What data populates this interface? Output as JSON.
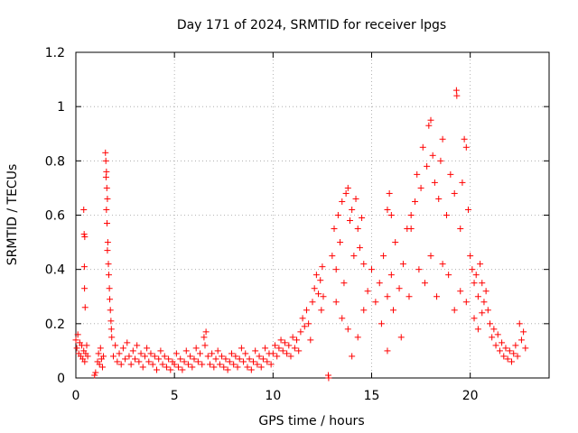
{
  "chart_data": {
    "type": "scatter",
    "title": "Day 171 of 2024, SRMTID for receiver lpgs",
    "xlabel": "GPS time / hours",
    "ylabel": "SRMTID / TECUs",
    "xlim": [
      0,
      24
    ],
    "ylim": [
      0,
      1.2
    ],
    "xticks": [
      0,
      5,
      10,
      15,
      20
    ],
    "xtick_labels": [
      "0",
      "5",
      "10",
      "15",
      "20"
    ],
    "yticks": [
      0,
      0.2,
      0.4,
      0.6,
      0.8,
      1.0,
      1.2
    ],
    "ytick_labels": [
      "0",
      "0.2",
      "0.4",
      "0.6",
      "0.8",
      "1",
      "1.2"
    ],
    "grid": true,
    "marker": "+",
    "marker_color": "#ff0000",
    "series": [
      {
        "name": "SRMTID",
        "points": [
          [
            0.0,
            0.14
          ],
          [
            0.05,
            0.11
          ],
          [
            0.1,
            0.16
          ],
          [
            0.15,
            0.09
          ],
          [
            0.2,
            0.13
          ],
          [
            0.25,
            0.08
          ],
          [
            0.3,
            0.12
          ],
          [
            0.35,
            0.07
          ],
          [
            0.4,
            0.1
          ],
          [
            0.45,
            0.06
          ],
          [
            0.5,
            0.09
          ],
          [
            0.55,
            0.12
          ],
          [
            0.6,
            0.08
          ],
          [
            0.4,
            0.62
          ],
          [
            0.42,
            0.53
          ],
          [
            0.45,
            0.52
          ],
          [
            0.43,
            0.41
          ],
          [
            0.44,
            0.33
          ],
          [
            0.47,
            0.26
          ],
          [
            0.95,
            0.01
          ],
          [
            1.0,
            0.02
          ],
          [
            1.1,
            0.06
          ],
          [
            1.15,
            0.09
          ],
          [
            1.2,
            0.05
          ],
          [
            1.25,
            0.11
          ],
          [
            1.3,
            0.07
          ],
          [
            1.35,
            0.04
          ],
          [
            1.4,
            0.08
          ],
          [
            1.5,
            0.83
          ],
          [
            1.52,
            0.8
          ],
          [
            1.55,
            0.76
          ],
          [
            1.53,
            0.74
          ],
          [
            1.57,
            0.7
          ],
          [
            1.6,
            0.66
          ],
          [
            1.55,
            0.62
          ],
          [
            1.58,
            0.57
          ],
          [
            1.62,
            0.5
          ],
          [
            1.6,
            0.47
          ],
          [
            1.65,
            0.42
          ],
          [
            1.67,
            0.38
          ],
          [
            1.7,
            0.33
          ],
          [
            1.72,
            0.29
          ],
          [
            1.75,
            0.25
          ],
          [
            1.78,
            0.21
          ],
          [
            1.8,
            0.18
          ],
          [
            1.82,
            0.15
          ],
          [
            1.9,
            0.08
          ],
          [
            2.0,
            0.12
          ],
          [
            2.1,
            0.06
          ],
          [
            2.2,
            0.09
          ],
          [
            2.3,
            0.05
          ],
          [
            2.4,
            0.11
          ],
          [
            2.5,
            0.07
          ],
          [
            2.6,
            0.13
          ],
          [
            2.7,
            0.08
          ],
          [
            2.8,
            0.05
          ],
          [
            2.9,
            0.1
          ],
          [
            3.0,
            0.07
          ],
          [
            3.1,
            0.12
          ],
          [
            3.2,
            0.06
          ],
          [
            3.3,
            0.09
          ],
          [
            3.4,
            0.04
          ],
          [
            3.5,
            0.08
          ],
          [
            3.6,
            0.11
          ],
          [
            3.7,
            0.06
          ],
          [
            3.8,
            0.09
          ],
          [
            3.9,
            0.05
          ],
          [
            4.0,
            0.08
          ],
          [
            4.1,
            0.03
          ],
          [
            4.2,
            0.07
          ],
          [
            4.3,
            0.1
          ],
          [
            4.4,
            0.05
          ],
          [
            4.5,
            0.08
          ],
          [
            4.6,
            0.04
          ],
          [
            4.7,
            0.07
          ],
          [
            4.8,
            0.03
          ],
          [
            4.9,
            0.06
          ],
          [
            5.0,
            0.05
          ],
          [
            5.1,
            0.09
          ],
          [
            5.2,
            0.04
          ],
          [
            5.3,
            0.07
          ],
          [
            5.4,
            0.03
          ],
          [
            5.5,
            0.06
          ],
          [
            5.6,
            0.1
          ],
          [
            5.7,
            0.05
          ],
          [
            5.8,
            0.08
          ],
          [
            5.9,
            0.04
          ],
          [
            6.0,
            0.07
          ],
          [
            6.1,
            0.11
          ],
          [
            6.2,
            0.06
          ],
          [
            6.3,
            0.09
          ],
          [
            6.4,
            0.05
          ],
          [
            6.5,
            0.15
          ],
          [
            6.55,
            0.12
          ],
          [
            6.6,
            0.17
          ],
          [
            6.7,
            0.08
          ],
          [
            6.8,
            0.05
          ],
          [
            6.9,
            0.09
          ],
          [
            7.0,
            0.04
          ],
          [
            7.1,
            0.07
          ],
          [
            7.2,
            0.1
          ],
          [
            7.3,
            0.05
          ],
          [
            7.4,
            0.08
          ],
          [
            7.5,
            0.04
          ],
          [
            7.6,
            0.07
          ],
          [
            7.7,
            0.03
          ],
          [
            7.8,
            0.06
          ],
          [
            7.9,
            0.09
          ],
          [
            8.0,
            0.05
          ],
          [
            8.1,
            0.08
          ],
          [
            8.2,
            0.04
          ],
          [
            8.3,
            0.07
          ],
          [
            8.4,
            0.11
          ],
          [
            8.5,
            0.06
          ],
          [
            8.6,
            0.09
          ],
          [
            8.7,
            0.04
          ],
          [
            8.8,
            0.07
          ],
          [
            8.9,
            0.03
          ],
          [
            9.0,
            0.06
          ],
          [
            9.1,
            0.1
          ],
          [
            9.2,
            0.05
          ],
          [
            9.3,
            0.08
          ],
          [
            9.4,
            0.04
          ],
          [
            9.5,
            0.07
          ],
          [
            9.6,
            0.11
          ],
          [
            9.7,
            0.06
          ],
          [
            9.8,
            0.09
          ],
          [
            9.9,
            0.05
          ],
          [
            10.0,
            0.09
          ],
          [
            10.1,
            0.12
          ],
          [
            10.2,
            0.08
          ],
          [
            10.3,
            0.11
          ],
          [
            10.4,
            0.14
          ],
          [
            10.5,
            0.1
          ],
          [
            10.6,
            0.13
          ],
          [
            10.7,
            0.09
          ],
          [
            10.8,
            0.12
          ],
          [
            10.9,
            0.08
          ],
          [
            11.0,
            0.15
          ],
          [
            11.1,
            0.11
          ],
          [
            11.2,
            0.14
          ],
          [
            11.3,
            0.1
          ],
          [
            11.4,
            0.17
          ],
          [
            11.5,
            0.22
          ],
          [
            11.6,
            0.19
          ],
          [
            11.7,
            0.25
          ],
          [
            11.8,
            0.2
          ],
          [
            11.9,
            0.14
          ],
          [
            12.0,
            0.28
          ],
          [
            12.1,
            0.33
          ],
          [
            12.2,
            0.38
          ],
          [
            12.3,
            0.31
          ],
          [
            12.4,
            0.36
          ],
          [
            12.5,
            0.41
          ],
          [
            12.55,
            0.3
          ],
          [
            12.45,
            0.25
          ],
          [
            12.8,
            0.01
          ],
          [
            12.82,
            0.0
          ],
          [
            13.0,
            0.45
          ],
          [
            13.1,
            0.55
          ],
          [
            13.2,
            0.4
          ],
          [
            13.3,
            0.6
          ],
          [
            13.4,
            0.5
          ],
          [
            13.5,
            0.65
          ],
          [
            13.6,
            0.35
          ],
          [
            13.7,
            0.68
          ],
          [
            13.8,
            0.7
          ],
          [
            13.9,
            0.58
          ],
          [
            14.0,
            0.62
          ],
          [
            14.1,
            0.45
          ],
          [
            14.2,
            0.66
          ],
          [
            14.3,
            0.55
          ],
          [
            14.4,
            0.48
          ],
          [
            14.5,
            0.59
          ],
          [
            14.6,
            0.42
          ],
          [
            13.2,
            0.28
          ],
          [
            13.5,
            0.22
          ],
          [
            13.8,
            0.18
          ],
          [
            14.0,
            0.08
          ],
          [
            14.3,
            0.15
          ],
          [
            14.6,
            0.25
          ],
          [
            14.8,
            0.32
          ],
          [
            15.0,
            0.4
          ],
          [
            15.2,
            0.28
          ],
          [
            15.4,
            0.35
          ],
          [
            15.6,
            0.45
          ],
          [
            15.8,
            0.3
          ],
          [
            16.0,
            0.38
          ],
          [
            16.2,
            0.5
          ],
          [
            16.4,
            0.33
          ],
          [
            16.6,
            0.42
          ],
          [
            16.8,
            0.55
          ],
          [
            17.0,
            0.6
          ],
          [
            15.5,
            0.2
          ],
          [
            15.8,
            0.1
          ],
          [
            16.1,
            0.25
          ],
          [
            16.5,
            0.15
          ],
          [
            16.9,
            0.3
          ],
          [
            15.8,
            0.62
          ],
          [
            15.9,
            0.68
          ],
          [
            16.0,
            0.6
          ],
          [
            17.0,
            0.55
          ],
          [
            17.2,
            0.65
          ],
          [
            17.3,
            0.75
          ],
          [
            17.5,
            0.7
          ],
          [
            17.6,
            0.85
          ],
          [
            17.8,
            0.78
          ],
          [
            17.9,
            0.93
          ],
          [
            18.0,
            0.95
          ],
          [
            18.1,
            0.82
          ],
          [
            18.2,
            0.72
          ],
          [
            18.4,
            0.66
          ],
          [
            18.5,
            0.8
          ],
          [
            18.6,
            0.88
          ],
          [
            18.8,
            0.6
          ],
          [
            19.0,
            0.75
          ],
          [
            19.2,
            0.68
          ],
          [
            19.3,
            1.06
          ],
          [
            19.32,
            1.04
          ],
          [
            19.5,
            0.55
          ],
          [
            19.6,
            0.72
          ],
          [
            19.7,
            0.88
          ],
          [
            19.8,
            0.85
          ],
          [
            19.9,
            0.62
          ],
          [
            17.4,
            0.4
          ],
          [
            17.7,
            0.35
          ],
          [
            18.0,
            0.45
          ],
          [
            18.3,
            0.3
          ],
          [
            18.6,
            0.42
          ],
          [
            18.9,
            0.38
          ],
          [
            19.2,
            0.25
          ],
          [
            19.5,
            0.32
          ],
          [
            19.8,
            0.28
          ],
          [
            20.0,
            0.45
          ],
          [
            20.1,
            0.4
          ],
          [
            20.2,
            0.35
          ],
          [
            20.3,
            0.38
          ],
          [
            20.4,
            0.3
          ],
          [
            20.5,
            0.42
          ],
          [
            20.6,
            0.35
          ],
          [
            20.7,
            0.28
          ],
          [
            20.8,
            0.32
          ],
          [
            20.9,
            0.25
          ],
          [
            20.2,
            0.22
          ],
          [
            20.4,
            0.18
          ],
          [
            20.6,
            0.24
          ],
          [
            21.0,
            0.2
          ],
          [
            21.1,
            0.15
          ],
          [
            21.2,
            0.18
          ],
          [
            21.3,
            0.12
          ],
          [
            21.4,
            0.16
          ],
          [
            21.5,
            0.1
          ],
          [
            21.6,
            0.13
          ],
          [
            21.7,
            0.08
          ],
          [
            21.8,
            0.11
          ],
          [
            21.9,
            0.07
          ],
          [
            22.0,
            0.1
          ],
          [
            22.1,
            0.06
          ],
          [
            22.2,
            0.09
          ],
          [
            22.3,
            0.12
          ],
          [
            22.4,
            0.08
          ],
          [
            22.5,
            0.2
          ],
          [
            22.6,
            0.14
          ],
          [
            22.7,
            0.17
          ],
          [
            22.8,
            0.11
          ]
        ]
      }
    ]
  }
}
